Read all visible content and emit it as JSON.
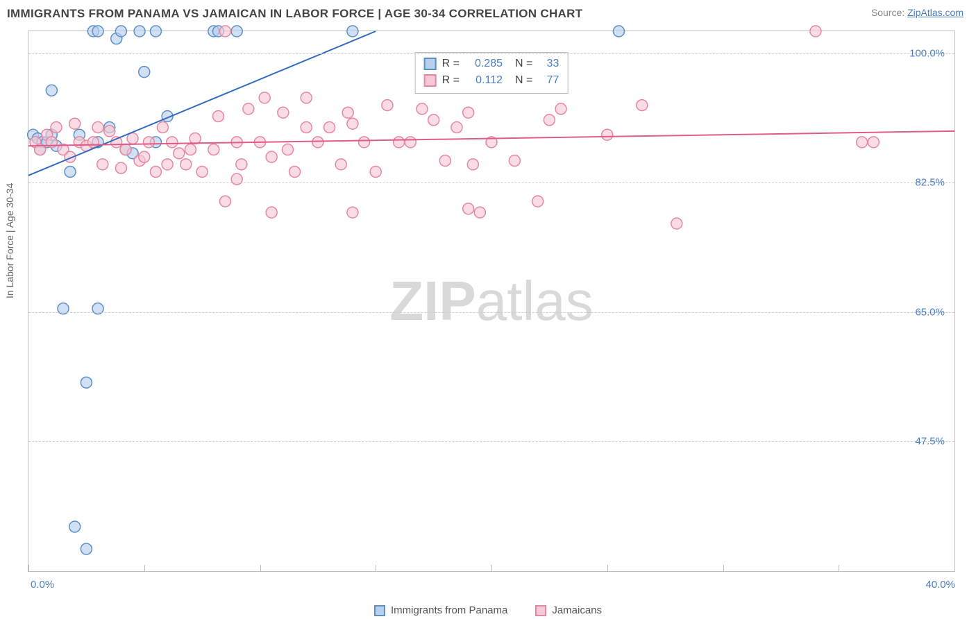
{
  "title": "IMMIGRANTS FROM PANAMA VS JAMAICAN IN LABOR FORCE | AGE 30-34 CORRELATION CHART",
  "source_label": "Source: ",
  "source_url": "ZipAtlas.com",
  "ylabel": "In Labor Force | Age 30-34",
  "watermark": {
    "z": "ZIP",
    "rest": "atlas"
  },
  "chart": {
    "type": "scatter",
    "xlim": [
      0.0,
      40.0
    ],
    "ylim": [
      30.0,
      103.0
    ],
    "ytick_labels": [
      "100.0%",
      "82.5%",
      "65.0%",
      "47.5%"
    ],
    "ytick_values": [
      100.0,
      82.5,
      65.0,
      47.5
    ],
    "xtick_left": "0.0%",
    "xtick_right": "40.0%",
    "xtick_positions": [
      0,
      5,
      10,
      15,
      20,
      25,
      30,
      35,
      40
    ],
    "grid_color": "#cccccc",
    "border_color": "#bbbbbb",
    "background_color": "#ffffff",
    "marker_radius": 8,
    "marker_stroke_width": 1.5,
    "line_width": 2,
    "series": [
      {
        "name": "Immigrants from Panama",
        "fill": "#b8d0ec",
        "stroke": "#5b8fc7",
        "line_stroke": "#2e6bbf",
        "r": "0.285",
        "n": "33",
        "regression": {
          "x1": 0.0,
          "y1": 83.5,
          "x2": 15.0,
          "y2": 103.0
        },
        "points": [
          [
            0.2,
            89.0
          ],
          [
            0.4,
            88.5
          ],
          [
            0.6,
            88.0
          ],
          [
            0.5,
            87.0
          ],
          [
            0.8,
            88.0
          ],
          [
            1.0,
            95.0
          ],
          [
            1.2,
            87.5
          ],
          [
            1.0,
            89.0
          ],
          [
            1.5,
            65.5
          ],
          [
            1.8,
            84.0
          ],
          [
            2.0,
            36.0
          ],
          [
            2.2,
            89.0
          ],
          [
            2.5,
            33.0
          ],
          [
            2.5,
            55.5
          ],
          [
            2.8,
            103.0
          ],
          [
            3.0,
            65.5
          ],
          [
            3.0,
            88.0
          ],
          [
            3.0,
            103.0
          ],
          [
            3.5,
            90.0
          ],
          [
            3.8,
            102.0
          ],
          [
            4.0,
            103.0
          ],
          [
            4.2,
            87.0
          ],
          [
            4.5,
            86.5
          ],
          [
            4.8,
            103.0
          ],
          [
            5.0,
            97.5
          ],
          [
            5.5,
            103.0
          ],
          [
            5.5,
            88.0
          ],
          [
            6.0,
            91.5
          ],
          [
            8.0,
            103.0
          ],
          [
            8.2,
            103.0
          ],
          [
            9.0,
            103.0
          ],
          [
            14.0,
            103.0
          ],
          [
            25.5,
            103.0
          ]
        ]
      },
      {
        "name": "Jamaicans",
        "fill": "#f6c9d6",
        "stroke": "#e686a3",
        "line_stroke": "#e05b89",
        "r": "0.112",
        "n": "77",
        "regression": {
          "x1": 0.0,
          "y1": 87.5,
          "x2": 40.0,
          "y2": 89.5
        },
        "points": [
          [
            0.3,
            88.0
          ],
          [
            0.5,
            87.0
          ],
          [
            0.8,
            89.0
          ],
          [
            1.0,
            88.0
          ],
          [
            1.2,
            90.0
          ],
          [
            1.5,
            87.0
          ],
          [
            1.8,
            86.0
          ],
          [
            2.0,
            90.5
          ],
          [
            2.2,
            88.0
          ],
          [
            2.5,
            87.5
          ],
          [
            2.8,
            88.0
          ],
          [
            3.0,
            90.0
          ],
          [
            3.2,
            85.0
          ],
          [
            3.5,
            89.5
          ],
          [
            3.8,
            88.0
          ],
          [
            4.0,
            84.5
          ],
          [
            4.2,
            87.0
          ],
          [
            4.5,
            88.5
          ],
          [
            4.8,
            85.5
          ],
          [
            5.0,
            86.0
          ],
          [
            5.2,
            88.0
          ],
          [
            5.5,
            84.0
          ],
          [
            5.8,
            90.0
          ],
          [
            6.0,
            85.0
          ],
          [
            6.2,
            88.0
          ],
          [
            6.5,
            86.5
          ],
          [
            6.8,
            85.0
          ],
          [
            7.0,
            87.0
          ],
          [
            7.2,
            88.5
          ],
          [
            7.5,
            84.0
          ],
          [
            8.0,
            87.0
          ],
          [
            8.2,
            91.5
          ],
          [
            8.5,
            80.0
          ],
          [
            8.5,
            103.0
          ],
          [
            9.0,
            88.0
          ],
          [
            9.2,
            85.0
          ],
          [
            9.0,
            83.0
          ],
          [
            9.5,
            92.5
          ],
          [
            10.0,
            88.0
          ],
          [
            10.2,
            94.0
          ],
          [
            10.5,
            86.0
          ],
          [
            10.5,
            78.5
          ],
          [
            11.0,
            92.0
          ],
          [
            11.2,
            87.0
          ],
          [
            11.5,
            84.0
          ],
          [
            12.0,
            90.0
          ],
          [
            12.0,
            94.0
          ],
          [
            12.5,
            88.0
          ],
          [
            13.0,
            90.0
          ],
          [
            13.5,
            85.0
          ],
          [
            13.8,
            92.0
          ],
          [
            14.0,
            90.5
          ],
          [
            14.0,
            78.5
          ],
          [
            14.5,
            88.0
          ],
          [
            15.0,
            84.0
          ],
          [
            15.5,
            93.0
          ],
          [
            16.0,
            88.0
          ],
          [
            16.5,
            88.0
          ],
          [
            17.0,
            92.5
          ],
          [
            17.5,
            91.0
          ],
          [
            18.0,
            85.5
          ],
          [
            18.5,
            90.0
          ],
          [
            19.0,
            79.0
          ],
          [
            19.2,
            85.0
          ],
          [
            19.0,
            92.0
          ],
          [
            19.5,
            78.5
          ],
          [
            20.0,
            88.0
          ],
          [
            21.0,
            85.5
          ],
          [
            22.0,
            80.0
          ],
          [
            22.5,
            91.0
          ],
          [
            23.0,
            92.5
          ],
          [
            25.0,
            89.0
          ],
          [
            26.5,
            93.0
          ],
          [
            28.0,
            77.0
          ],
          [
            34.0,
            103.0
          ],
          [
            36.0,
            88.0
          ],
          [
            36.5,
            88.0
          ]
        ]
      }
    ]
  },
  "rbox": {
    "r_label": "R =",
    "n_label": "N ="
  },
  "legend_bottom": [
    {
      "label": "Immigrants from Panama",
      "fill": "#b8d0ec",
      "stroke": "#5b8fc7"
    },
    {
      "label": "Jamaicans",
      "fill": "#f6c9d6",
      "stroke": "#e686a3"
    }
  ]
}
